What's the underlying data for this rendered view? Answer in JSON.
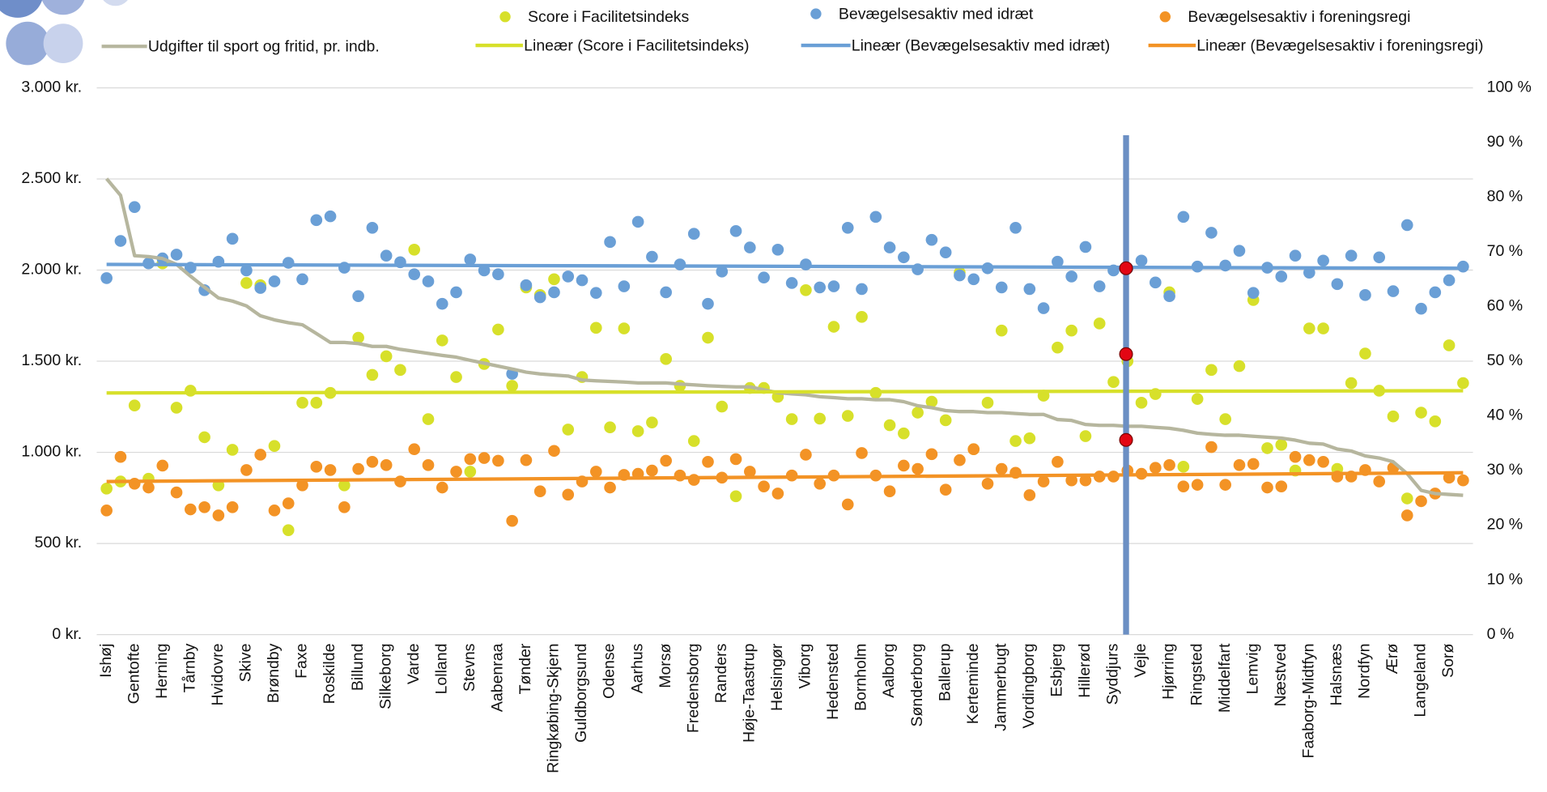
{
  "chart_data": {
    "type": "combo",
    "categories": [
      "Ishøj",
      null,
      "Gentofte",
      null,
      "Herning",
      null,
      "Tårnby",
      null,
      "Hvidovre",
      null,
      "Skive",
      null,
      "Brøndby",
      null,
      "Faxe",
      null,
      "Roskilde",
      null,
      "Billund",
      null,
      "Silkeborg",
      null,
      "Varde",
      null,
      "Lolland",
      null,
      "Stevns",
      null,
      "Aabenraa",
      null,
      "Tønder",
      null,
      "Ringkøbing-Skjern",
      null,
      "Guldborgsund",
      null,
      "Odense",
      null,
      "Aarhus",
      null,
      "Morsø",
      null,
      "Fredensborg",
      null,
      "Randers",
      null,
      "Høje-Taastrup",
      null,
      "Helsingør",
      null,
      "Viborg",
      null,
      "Hedensted",
      null,
      "Bornholm",
      null,
      "Aalborg",
      null,
      "Sønderborg",
      null,
      "Ballerup",
      null,
      "Kerteminde",
      null,
      "Jammerbugt",
      null,
      "Vordingborg",
      null,
      "Esbjerg",
      null,
      "Hillerød",
      null,
      "Syddjurs",
      null,
      "Vejle",
      null,
      "Hjørring",
      null,
      "Ringsted",
      null,
      "Middelfart",
      null,
      "Lemvig",
      null,
      "Næstved",
      null,
      "Faaborg-Midtfyn",
      null,
      "Halsnæs",
      null,
      "Nordfyn",
      null,
      "Ærø",
      null,
      "Langeland",
      null,
      "Sorø",
      null
    ],
    "series": [
      {
        "name": "Udgifter til sport og fritid, pr. indb.",
        "mark": "line",
        "axis": "y",
        "color": "#b6b69e",
        "values": [
          2502,
          2410,
          2079,
          2074,
          2063,
          2031,
          1966,
          1906,
          1847,
          1830,
          1803,
          1749,
          1727,
          1711,
          1700,
          1652,
          1603,
          1603,
          1597,
          1581,
          1581,
          1565,
          1554,
          1543,
          1532,
          1522,
          1505,
          1489,
          1473,
          1457,
          1440,
          1430,
          1424,
          1419,
          1397,
          1392,
          1389,
          1386,
          1381,
          1381,
          1381,
          1375,
          1370,
          1365,
          1362,
          1359,
          1359,
          1343,
          1327,
          1321,
          1316,
          1305,
          1300,
          1294,
          1294,
          1289,
          1289,
          1278,
          1256,
          1245,
          1229,
          1224,
          1224,
          1218,
          1218,
          1213,
          1208,
          1208,
          1180,
          1175,
          1153,
          1148,
          1148,
          1143,
          1143,
          1137,
          1132,
          1121,
          1105,
          1099,
          1094,
          1094,
          1088,
          1083,
          1078,
          1067,
          1050,
          1045,
          1018,
          1007,
          980,
          969,
          948,
          883,
          791,
          774,
          769,
          764
        ]
      },
      {
        "name": "Score i Facilitetsindeks",
        "mark": "dot",
        "axis": "y2",
        "color": "#d7e02a",
        "values": [
          26.7,
          28,
          41.9,
          28.5,
          67.9,
          41.5,
          44.6,
          36.1,
          27.3,
          33.8,
          64.3,
          63.9,
          34.5,
          19.1,
          42.4,
          42.4,
          44.2,
          27.3,
          54.3,
          47.5,
          50.9,
          48.4,
          70.4,
          39.4,
          53.8,
          47.1,
          29.8,
          49.5,
          55.8,
          45.5,
          63.5,
          62.1,
          65.0,
          37.5,
          47.1,
          56.1,
          37.9,
          56.0,
          37.2,
          38.8,
          50.4,
          45.5,
          35.4,
          54.3,
          41.7,
          25.3,
          45.1,
          45.1,
          43.5,
          39.4,
          63.0,
          39.5,
          56.3,
          40,
          58.1,
          44.2,
          38.3,
          36.8,
          40.6,
          42.6,
          39.2,
          66.2,
          33.9,
          42.4,
          55.6,
          35.4,
          35.9,
          43.7,
          52.5,
          55.6,
          36.3,
          56.9,
          46.2,
          50,
          42.4,
          44.0,
          62.6,
          30.7,
          43.1,
          48.4,
          39.4,
          49.1,
          61.2,
          34.1,
          34.7,
          30.0,
          56.0,
          56.0,
          30.3,
          46.0,
          51.4,
          44.6,
          39.9,
          24.9,
          40.6,
          39.0,
          52.9,
          46.0
        ]
      },
      {
        "name": "Bevægelsesaktiv med idræt",
        "mark": "dot",
        "axis": "y2",
        "color": "#6a9fd6",
        "values": [
          65.2,
          72.0,
          78.2,
          67.9,
          68.8,
          69.5,
          67.1,
          63.0,
          68.2,
          72.4,
          66.6,
          63.4,
          64.6,
          68.0,
          65.0,
          75.8,
          76.5,
          67.1,
          61.9,
          74.4,
          69.3,
          68.1,
          65.9,
          64.6,
          60.5,
          62.6,
          68.6,
          66.6,
          65.9,
          47.7,
          63.9,
          61.7,
          62.6,
          65.5,
          64.8,
          62.5,
          71.8,
          63.7,
          75.5,
          69.1,
          62.6,
          67.7,
          73.3,
          60.5,
          66.4,
          73.8,
          70.8,
          65.3,
          70.4,
          64.3,
          67.7,
          63.5,
          63.7,
          74.4,
          63.2,
          76.4,
          70.8,
          69.0,
          66.8,
          72.2,
          69.9,
          65.7,
          65.0,
          67.0,
          63.5,
          74.4,
          63.2,
          59.7,
          68.2,
          65.5,
          70.9,
          63.7,
          66.6,
          67.0,
          68.4,
          64.4,
          61.9,
          76.4,
          67.3,
          73.5,
          67.5,
          70.2,
          62.5,
          67.1,
          65.5,
          69.3,
          66.2,
          68.4,
          64.1,
          69.3,
          62.1,
          69.0,
          62.8,
          74.9,
          59.6,
          62.6,
          64.8,
          67.3
        ]
      },
      {
        "name": "Bevægelsesaktiv i foreningsregi",
        "mark": "dot",
        "axis": "y2",
        "color": "#f39325",
        "values": [
          22.7,
          32.5,
          27.6,
          26.9,
          30.9,
          26.0,
          22.9,
          23.3,
          21.8,
          23.3,
          30.1,
          32.9,
          22.7,
          24.0,
          27.3,
          30.7,
          30.1,
          23.3,
          30.3,
          31.6,
          31.0,
          28.0,
          33.9,
          31.0,
          26.9,
          29.8,
          32.1,
          32.3,
          31.8,
          20.8,
          31.9,
          26.2,
          33.6,
          25.6,
          28.0,
          29.8,
          26.9,
          29.2,
          29.4,
          30.0,
          31.8,
          29.1,
          28.3,
          31.6,
          28.7,
          32.1,
          29.8,
          27.1,
          25.8,
          29.1,
          32.9,
          27.6,
          29.1,
          23.8,
          33.2,
          29.1,
          26.2,
          30.9,
          30.3,
          33.0,
          26.5,
          31.9,
          33.9,
          27.6,
          30.3,
          29.6,
          25.5,
          28.0,
          31.6,
          28.2,
          28.2,
          28.9,
          28.9,
          30,
          29.4,
          30.5,
          31.0,
          27.1,
          27.4,
          34.3,
          27.4,
          31.0,
          31.2,
          26.9,
          27.1,
          32.5,
          31.9,
          31.6,
          28.9,
          28.9,
          30.1,
          28.0,
          30.5,
          21.8,
          24.4,
          25.8,
          28.7,
          28.2
        ]
      }
    ],
    "trendlines": [
      {
        "name": "Lineær (Score i Facilitetsindeks)",
        "axis": "y2",
        "color": "#d7e02a",
        "values": [
          44.2,
          44.6
        ]
      },
      {
        "name": "Lineær (Bevægelsesaktiv med idræt)",
        "axis": "y2",
        "color": "#6a9fd6",
        "values": [
          67.7,
          67.0
        ]
      },
      {
        "name": "Lineær (Bevægelsesaktiv i foreningsregi)",
        "axis": "y2",
        "color": "#f39325",
        "values": [
          28.0,
          29.6
        ]
      }
    ],
    "highlight": {
      "category": "Syddjurs",
      "line_color": "#6b8fc4",
      "color": "#e30613",
      "axis": "y2",
      "values": [
        67.0,
        51.3,
        35.6
      ]
    },
    "ylim": [
      0,
      3000
    ],
    "yticks": [
      {
        "value": 0,
        "label": "0 kr."
      },
      {
        "value": 500,
        "label": "500 kr."
      },
      {
        "value": 1000,
        "label": "1.000 kr."
      },
      {
        "value": 1500,
        "label": "1.500 kr."
      },
      {
        "value": 2000,
        "label": "2.000 kr."
      },
      {
        "value": 2500,
        "label": "2.500 kr."
      },
      {
        "value": 3000,
        "label": "3.000 kr."
      }
    ],
    "y2lim": [
      0,
      100
    ],
    "y2ticks": [
      {
        "value": 0,
        "label": "0 %"
      },
      {
        "value": 10,
        "label": "10 %"
      },
      {
        "value": 20,
        "label": "20 %"
      },
      {
        "value": 30,
        "label": "30 %"
      },
      {
        "value": 40,
        "label": "40 %"
      },
      {
        "value": 50,
        "label": "50 %"
      },
      {
        "value": 60,
        "label": "60 %"
      },
      {
        "value": 70,
        "label": "70 %"
      },
      {
        "value": 80,
        "label": "80 %"
      },
      {
        "value": 90,
        "label": "90 %"
      },
      {
        "value": 100,
        "label": "100 %"
      }
    ],
    "grid": true
  }
}
